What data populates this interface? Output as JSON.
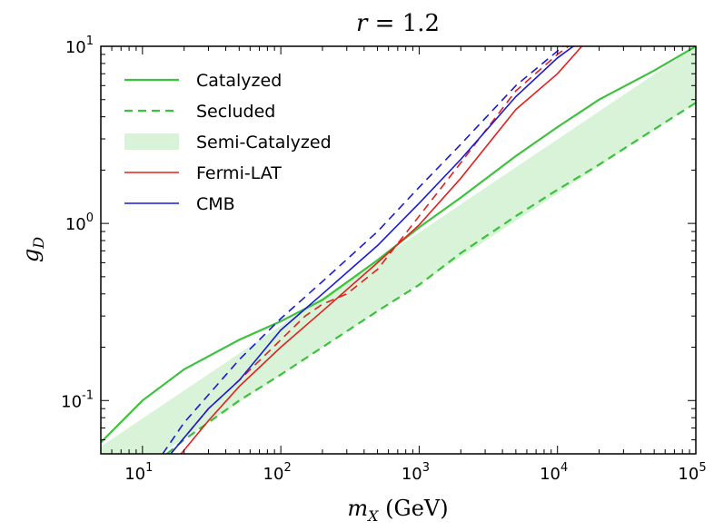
{
  "chart_data": {
    "type": "line",
    "title": "r = 1.2",
    "xlabel": "m_X (GeV)",
    "ylabel": "g_D",
    "xscale": "log",
    "yscale": "log",
    "xlim": [
      5,
      100000
    ],
    "ylim": [
      0.05,
      10
    ],
    "x_tick_labels": [
      "10^1",
      "10^2",
      "10^3",
      "10^4",
      "10^5"
    ],
    "y_tick_labels": [
      "10^-1",
      "10^0",
      "10^1"
    ],
    "legend_position": "top-left",
    "legend": [
      {
        "label": "Catalyzed",
        "style": "solid",
        "color": "#3cc23c"
      },
      {
        "label": "Secluded",
        "style": "dashed",
        "color": "#3cc23c"
      },
      {
        "label": "Semi-Catalyzed",
        "style": "band",
        "color": "#d8f3d8"
      },
      {
        "label": "Fermi-LAT",
        "style": "solid",
        "color": "#e32020"
      },
      {
        "label": "CMB",
        "style": "solid",
        "color": "#1a1ad6"
      }
    ],
    "band": {
      "name": "Semi-Catalyzed",
      "color": "#d8f3d8",
      "x": [
        5,
        100000
      ],
      "upper": [
        0.055,
        10
      ],
      "lower": [
        0.03,
        4.8
      ]
    },
    "series": [
      {
        "name": "Catalyzed",
        "color": "#3cc23c",
        "style": "solid",
        "x": [
          5,
          10,
          20,
          50,
          100,
          200,
          500,
          1000,
          2000,
          5000,
          10000,
          20000,
          50000,
          100000
        ],
        "y": [
          0.058,
          0.1,
          0.15,
          0.22,
          0.28,
          0.37,
          0.62,
          0.95,
          1.4,
          2.4,
          3.5,
          5.0,
          7.3,
          10
        ]
      },
      {
        "name": "Secluded",
        "color": "#3cc23c",
        "style": "dashed",
        "x": [
          15,
          20,
          50,
          100,
          200,
          500,
          1000,
          2000,
          5000,
          10000,
          20000,
          50000,
          100000
        ],
        "y": [
          0.05,
          0.06,
          0.1,
          0.14,
          0.2,
          0.32,
          0.45,
          0.68,
          1.1,
          1.55,
          2.15,
          3.4,
          4.8
        ]
      },
      {
        "name": "Fermi-LAT",
        "color": "#e32020",
        "style": "solid",
        "x": [
          19,
          30,
          50,
          100,
          200,
          500,
          1000,
          2000,
          5000,
          10000,
          15000
        ],
        "y": [
          0.05,
          0.077,
          0.12,
          0.2,
          0.32,
          0.6,
          0.98,
          1.8,
          4.4,
          7.0,
          10
        ]
      },
      {
        "name": "Fermi-LAT (secluded)",
        "color": "#e32020",
        "style": "dashed",
        "x": [
          16,
          30,
          50,
          100,
          150,
          200,
          300,
          500,
          1000,
          2000,
          5000,
          10000,
          12000
        ],
        "y": [
          0.05,
          0.09,
          0.13,
          0.22,
          0.3,
          0.35,
          0.4,
          0.55,
          1.1,
          2.2,
          5.6,
          9.0,
          10
        ]
      },
      {
        "name": "CMB",
        "color": "#1a1ad6",
        "style": "solid",
        "x": [
          16,
          30,
          50,
          100,
          200,
          500,
          1000,
          2000,
          5000,
          10000,
          13000
        ],
        "y": [
          0.05,
          0.09,
          0.13,
          0.25,
          0.4,
          0.75,
          1.3,
          2.3,
          5.2,
          8.6,
          10
        ]
      },
      {
        "name": "CMB (secluded)",
        "color": "#1a1ad6",
        "style": "dashed",
        "x": [
          14,
          20,
          50,
          100,
          200,
          500,
          1000,
          2000,
          5000,
          11000
        ],
        "y": [
          0.05,
          0.075,
          0.17,
          0.29,
          0.47,
          0.9,
          1.6,
          2.8,
          6.0,
          10
        ]
      }
    ]
  }
}
